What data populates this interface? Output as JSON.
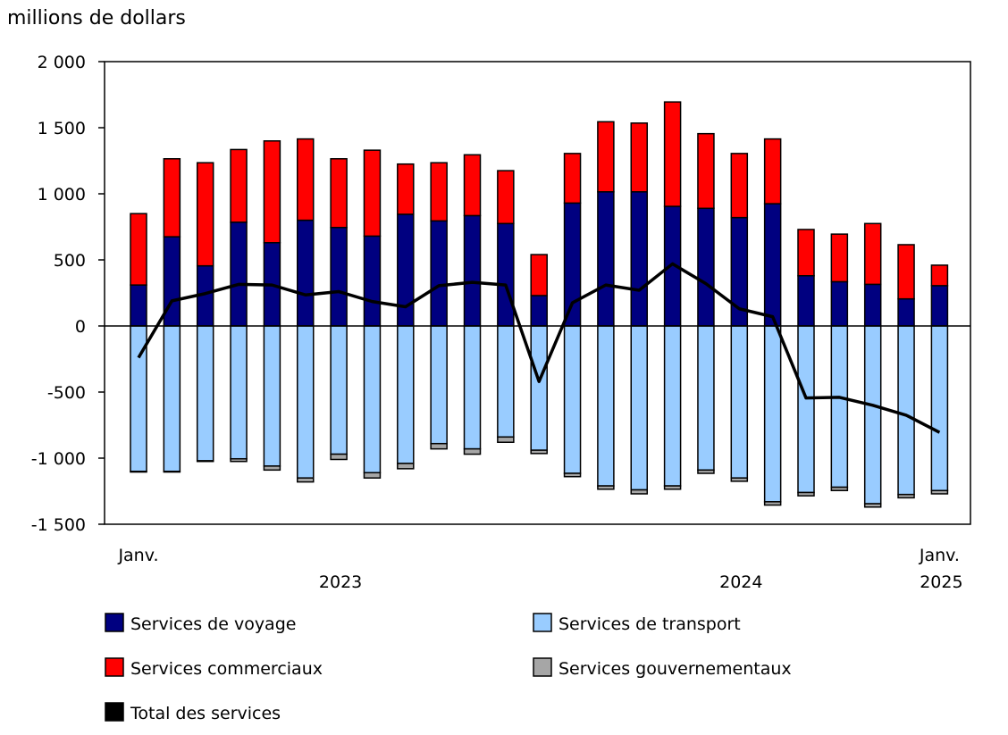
{
  "chart_data": {
    "type": "bar",
    "stacked": true,
    "units_label": "millions de dollars",
    "ylim": [
      -1500,
      2000
    ],
    "yticks": [
      2000,
      1500,
      1000,
      500,
      0,
      -500,
      -1000,
      -1500
    ],
    "ytick_labels": [
      "2 000",
      "1 500",
      "1 000",
      "500",
      "0",
      "-500",
      "-1 000",
      "-1 500"
    ],
    "categories": [
      "2023-01",
      "2023-02",
      "2023-03",
      "2023-04",
      "2023-05",
      "2023-06",
      "2023-07",
      "2023-08",
      "2023-09",
      "2023-10",
      "2023-11",
      "2023-12",
      "2024-01",
      "2024-02",
      "2024-03",
      "2024-04",
      "2024-05",
      "2024-06",
      "2024-07",
      "2024-08",
      "2024-09",
      "2024-10",
      "2024-11",
      "2024-12",
      "2025-01"
    ],
    "x_annotations": [
      {
        "index": 0,
        "text": "Janv."
      },
      {
        "index": 24,
        "text": "Janv."
      }
    ],
    "x_years": [
      {
        "index": 6,
        "text": "2023"
      },
      {
        "index": 18,
        "text": "2024"
      },
      {
        "index": 24,
        "text": "2025"
      }
    ],
    "series": [
      {
        "name": "Services de voyage",
        "kind": "bar",
        "color": "#000080",
        "values": [
          310,
          675,
          455,
          785,
          630,
          800,
          745,
          680,
          845,
          795,
          835,
          775,
          230,
          930,
          1015,
          1015,
          905,
          890,
          820,
          925,
          380,
          335,
          315,
          205,
          305
        ]
      },
      {
        "name": "Services commerciaux",
        "kind": "bar",
        "color": "#ff0000",
        "values": [
          540,
          590,
          780,
          550,
          770,
          615,
          520,
          650,
          380,
          440,
          460,
          400,
          310,
          375,
          530,
          520,
          790,
          565,
          485,
          490,
          350,
          360,
          460,
          410,
          155
        ]
      },
      {
        "name": "Services de transport",
        "kind": "bar",
        "color": "#99ccff",
        "values": [
          -1100,
          -1100,
          -1020,
          -1005,
          -1060,
          -1150,
          -970,
          -1110,
          -1040,
          -890,
          -930,
          -840,
          -940,
          -1115,
          -1210,
          -1240,
          -1210,
          -1090,
          -1150,
          -1330,
          -1260,
          -1220,
          -1345,
          -1275,
          -1245
        ]
      },
      {
        "name": "Services gouvernementaux",
        "kind": "bar",
        "color": "#a6a6a6",
        "values": [
          -5,
          -5,
          -5,
          -20,
          -30,
          -30,
          -40,
          -40,
          -40,
          -40,
          -40,
          -40,
          -25,
          -25,
          -25,
          -30,
          -25,
          -25,
          -25,
          -25,
          -25,
          -25,
          -25,
          -25,
          -25
        ]
      },
      {
        "name": "Total des services",
        "kind": "line",
        "color": "#000000",
        "values": [
          -240,
          190,
          245,
          315,
          310,
          235,
          260,
          185,
          145,
          305,
          330,
          310,
          -420,
          175,
          310,
          270,
          470,
          320,
          130,
          70,
          -545,
          -540,
          -600,
          -675,
          -805
        ]
      }
    ],
    "legend": [
      {
        "label": "Services de voyage",
        "color": "#000080"
      },
      {
        "label": "Services de transport",
        "color": "#99ccff"
      },
      {
        "label": "Services commerciaux",
        "color": "#ff0000"
      },
      {
        "label": "Services gouvernementaux",
        "color": "#a6a6a6"
      },
      {
        "label": "Total des services",
        "color": "#000000"
      }
    ]
  }
}
